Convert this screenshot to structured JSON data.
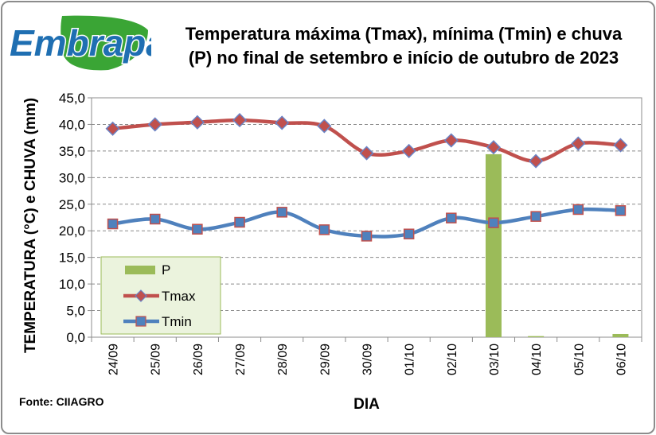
{
  "logo": {
    "text": "Embrapa",
    "colors": {
      "text": "#1f6fb2",
      "leaf": "#3aa535"
    }
  },
  "title_lines": [
    "Temperatura máxima (Tmax), mínima (Tmin) e chuva",
    "(P) no final de setembro e início de outubro de 2023"
  ],
  "source": "Fonte: CIIAGRO",
  "chart_data": {
    "type": "bar+line",
    "title": "Temperatura máxima (Tmax), mínima (Tmin) e chuva (P) no final de setembro e início de outubro de 2023",
    "xlabel": "DIA",
    "ylabel": "TEMPERATURA (°C) e CHUVA (mm)",
    "ylim": [
      0,
      45
    ],
    "ytick_labels": [
      "0,0",
      "5,0",
      "10,0",
      "15,0",
      "20,0",
      "25,0",
      "30,0",
      "35,0",
      "40,0",
      "45,0"
    ],
    "grid": "horizontal dashed",
    "legend_position": "bottom-left inside plot",
    "categories": [
      "24/09",
      "25/09",
      "26/09",
      "27/09",
      "28/09",
      "29/09",
      "30/09",
      "01/10",
      "02/10",
      "03/10",
      "04/10",
      "05/10",
      "06/10"
    ],
    "series": [
      {
        "name": "P",
        "kind": "bar",
        "color": "#9bbb59",
        "values": [
          0,
          0,
          0,
          0,
          0,
          0,
          0,
          0,
          0,
          34.4,
          0.2,
          0,
          0.6
        ]
      },
      {
        "name": "Tmax",
        "kind": "line",
        "color": "#c0504d",
        "marker": "diamond",
        "values": [
          39.2,
          40.0,
          40.4,
          40.8,
          40.3,
          39.7,
          34.6,
          35.0,
          37.0,
          35.7,
          33.1,
          36.4,
          36.1
        ]
      },
      {
        "name": "Tmin",
        "kind": "line",
        "color": "#4f81bd",
        "marker": "square",
        "values": [
          21.3,
          22.2,
          20.3,
          21.6,
          23.5,
          20.2,
          19.0,
          19.4,
          22.4,
          21.5,
          22.7,
          24.0,
          23.8
        ]
      }
    ]
  }
}
